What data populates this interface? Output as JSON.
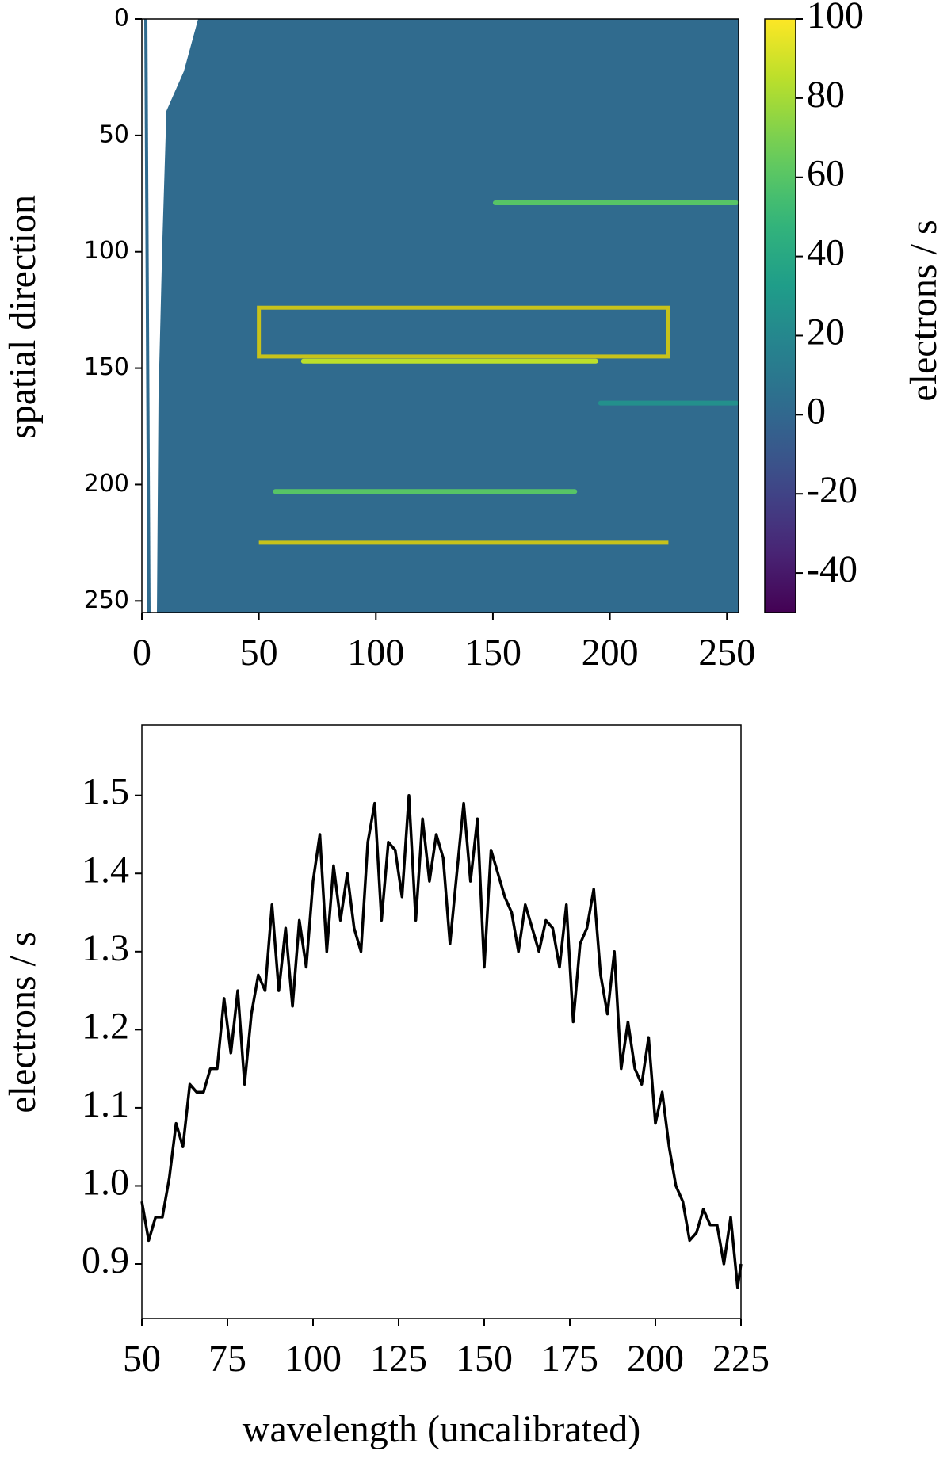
{
  "chart_data": [
    {
      "type": "image",
      "ylabel": "spatial direction",
      "xlim": [
        0,
        255
      ],
      "ylim": [
        255,
        0
      ],
      "xticks": [
        0,
        50,
        100,
        150,
        200,
        250
      ],
      "yticks": [
        0,
        50,
        100,
        150,
        200,
        250
      ],
      "colormap": "viridis",
      "background": 2,
      "clim": [
        -50,
        100
      ],
      "colorbar_ticks": [
        -40,
        -20,
        0,
        20,
        40,
        60,
        80,
        100
      ],
      "colorbar_label": "electrons / s",
      "streaks": [
        {
          "x": [
            150,
            255
          ],
          "y": 79,
          "value": 60
        },
        {
          "x": [
            68,
            195
          ],
          "y": 147,
          "value": 85
        },
        {
          "x": [
            195,
            255
          ],
          "y": 165,
          "value": 25
        },
        {
          "x": [
            56,
            186
          ],
          "y": 203,
          "value": 60
        }
      ],
      "annotations": [
        {
          "shape": "rect",
          "x": [
            50,
            225
          ],
          "y": [
            124,
            145
          ],
          "color": "#c8c21a"
        },
        {
          "shape": "line",
          "x": [
            50,
            225
          ],
          "y": [
            225,
            225
          ],
          "color": "#c8c21a"
        }
      ]
    },
    {
      "type": "line",
      "xlabel": "wavelength (uncalibrated)",
      "ylabel": "electrons / s",
      "xlim": [
        50,
        225
      ],
      "ylim": [
        0.83,
        1.59
      ],
      "xticks": [
        50,
        75,
        100,
        125,
        150,
        175,
        200,
        225
      ],
      "yticks": [
        0.9,
        {
          "value": 1,
          "label": "1.0"
        },
        1.1,
        1.2,
        1.3,
        1.4,
        1.5
      ],
      "color": "#000000",
      "x": [
        50,
        52,
        54,
        56,
        58,
        60,
        62,
        64,
        66,
        68,
        70,
        72,
        74,
        76,
        78,
        80,
        82,
        84,
        86,
        88,
        90,
        92,
        94,
        96,
        98,
        100,
        102,
        104,
        106,
        108,
        110,
        112,
        114,
        116,
        118,
        120,
        122,
        124,
        126,
        128,
        130,
        132,
        134,
        136,
        138,
        140,
        142,
        144,
        146,
        148,
        150,
        152,
        154,
        156,
        158,
        160,
        162,
        164,
        166,
        168,
        170,
        172,
        174,
        176,
        178,
        180,
        182,
        184,
        186,
        188,
        190,
        192,
        194,
        196,
        198,
        200,
        202,
        204,
        206,
        208,
        210,
        212,
        214,
        216,
        218,
        220,
        222,
        224,
        225
      ],
      "values": [
        0.98,
        0.93,
        0.96,
        0.96,
        1.01,
        1.08,
        1.05,
        1.13,
        1.12,
        1.12,
        1.15,
        1.15,
        1.24,
        1.17,
        1.25,
        1.13,
        1.22,
        1.27,
        1.25,
        1.36,
        1.25,
        1.33,
        1.23,
        1.34,
        1.28,
        1.39,
        1.45,
        1.3,
        1.41,
        1.34,
        1.4,
        1.33,
        1.3,
        1.44,
        1.49,
        1.34,
        1.44,
        1.43,
        1.37,
        1.5,
        1.34,
        1.47,
        1.39,
        1.45,
        1.42,
        1.31,
        1.4,
        1.49,
        1.39,
        1.47,
        1.28,
        1.43,
        1.4,
        1.37,
        1.35,
        1.3,
        1.36,
        1.33,
        1.3,
        1.34,
        1.33,
        1.28,
        1.36,
        1.21,
        1.31,
        1.33,
        1.38,
        1.27,
        1.22,
        1.3,
        1.15,
        1.21,
        1.15,
        1.13,
        1.19,
        1.08,
        1.12,
        1.05,
        1.0,
        0.98,
        0.93,
        0.94,
        0.97,
        0.95,
        0.95,
        0.9,
        0.96,
        0.87,
        0.9
      ]
    }
  ]
}
